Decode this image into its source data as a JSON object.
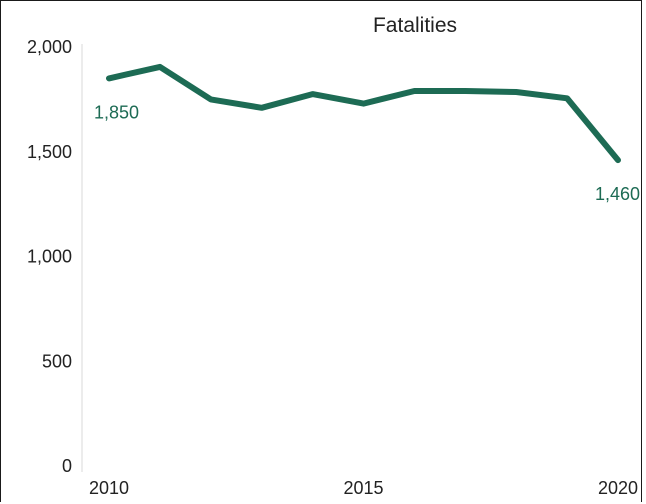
{
  "chart_data": {
    "type": "line",
    "title": "Fatalities",
    "xlabel": "",
    "ylabel": "",
    "x": [
      2010,
      2011,
      2012,
      2013,
      2014,
      2015,
      2016,
      2017,
      2018,
      2019,
      2020
    ],
    "series": [
      {
        "values": [
          1850,
          1905,
          1750,
          1710,
          1775,
          1730,
          1790,
          1790,
          1785,
          1755,
          1460
        ]
      }
    ],
    "xticks": [
      "2010",
      "2015",
      "2020"
    ],
    "yticks": [
      "0",
      "500",
      "1,000",
      "1,500",
      "2,000"
    ],
    "xlim": [
      2010,
      2020
    ],
    "ylim": [
      0,
      2000
    ],
    "data_labels": [
      {
        "x": 2010,
        "text": "1,850"
      },
      {
        "x": 2020,
        "text": "1,460"
      }
    ],
    "grid": false,
    "legend": "none",
    "line_color": "#1d6b54"
  }
}
